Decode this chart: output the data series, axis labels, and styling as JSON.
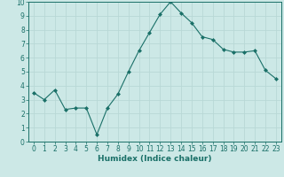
{
  "x": [
    0,
    1,
    2,
    3,
    4,
    5,
    6,
    7,
    8,
    9,
    10,
    11,
    12,
    13,
    14,
    15,
    16,
    17,
    18,
    19,
    20,
    21,
    22,
    23
  ],
  "y": [
    3.5,
    3.0,
    3.7,
    2.3,
    2.4,
    2.4,
    0.5,
    2.4,
    3.4,
    5.0,
    6.5,
    7.8,
    9.1,
    10.0,
    9.2,
    8.5,
    7.5,
    7.3,
    6.6,
    6.4,
    6.4,
    6.5,
    5.1,
    4.5
  ],
  "line_color": "#1a7068",
  "marker": "D",
  "marker_size": 2,
  "bg_color": "#cce8e6",
  "grid_color": "#b8d8d6",
  "xlabel": "Humidex (Indice chaleur)",
  "xlim": [
    -0.5,
    23.5
  ],
  "ylim": [
    0,
    10
  ],
  "xticks": [
    0,
    1,
    2,
    3,
    4,
    5,
    6,
    7,
    8,
    9,
    10,
    11,
    12,
    13,
    14,
    15,
    16,
    17,
    18,
    19,
    20,
    21,
    22,
    23
  ],
  "yticks": [
    0,
    1,
    2,
    3,
    4,
    5,
    6,
    7,
    8,
    9,
    10
  ],
  "label_fontsize": 6.5,
  "tick_fontsize": 5.5
}
